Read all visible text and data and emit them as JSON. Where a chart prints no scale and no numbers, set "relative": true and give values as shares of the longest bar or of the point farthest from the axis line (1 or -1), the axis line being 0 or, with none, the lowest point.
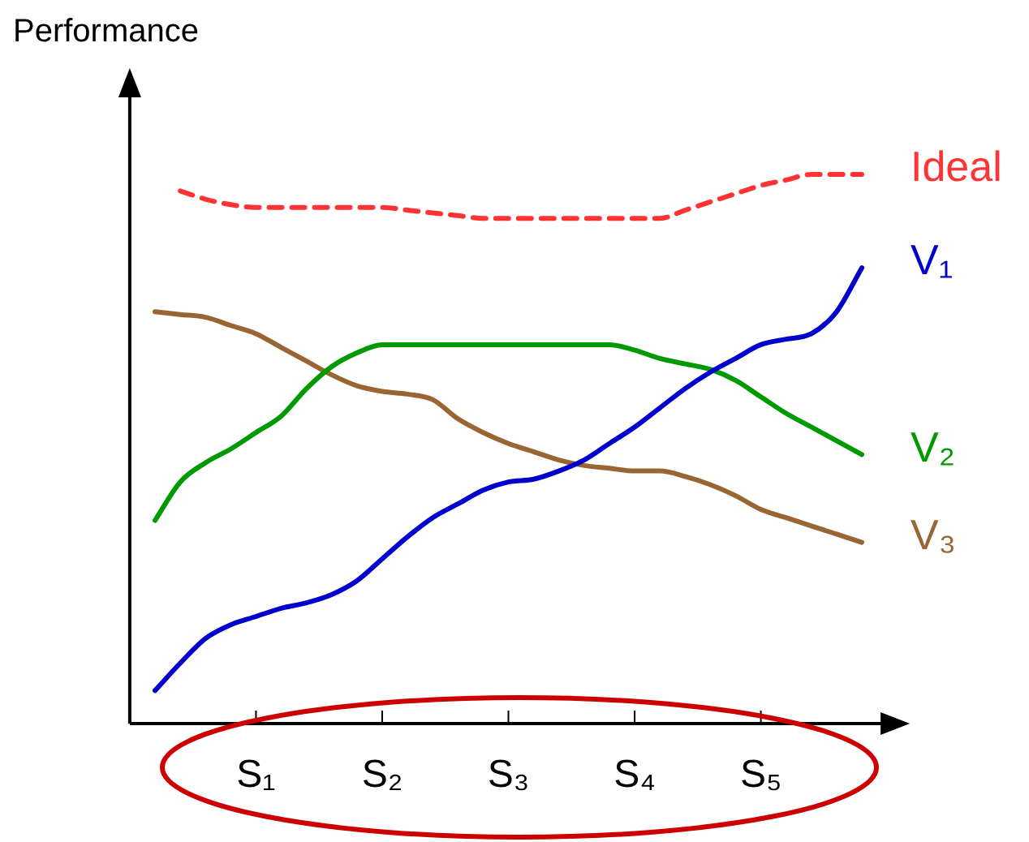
{
  "chart_data": {
    "type": "line",
    "relative": true,
    "ylabel": "Performance",
    "legend": false,
    "grid": false,
    "marker": "none",
    "categories": [
      null,
      null,
      null,
      null,
      "S₁",
      null,
      null,
      null,
      null,
      "S₂",
      null,
      null,
      null,
      null,
      "S₃",
      null,
      null,
      null,
      null,
      "S₄",
      null,
      null,
      null,
      null,
      "S₅",
      null,
      null,
      null,
      null
    ],
    "series": [
      {
        "name": "Ideal",
        "color": "#ff3333",
        "line_style": "dashed",
        "values": [
          null,
          0.97,
          0.955,
          0.945,
          0.94,
          0.94,
          0.94,
          0.94,
          0.94,
          0.94,
          0.935,
          0.93,
          0.925,
          0.92,
          0.92,
          0.92,
          0.92,
          0.92,
          0.92,
          0.92,
          0.92,
          0.935,
          0.95,
          0.965,
          0.98,
          0.99,
          1.0,
          1.0,
          1.0
        ]
      },
      {
        "name": "V₁",
        "color": "#0000cc",
        "line_style": "solid",
        "values": [
          0.06,
          0.11,
          0.155,
          0.18,
          0.195,
          0.21,
          0.22,
          0.235,
          0.26,
          0.3,
          0.34,
          0.375,
          0.4,
          0.425,
          0.44,
          0.445,
          0.46,
          0.48,
          0.51,
          0.54,
          0.575,
          0.61,
          0.64,
          0.665,
          0.69,
          0.7,
          0.71,
          0.75,
          0.83
        ]
      },
      {
        "name": "V₂",
        "color": "#009900",
        "line_style": "solid",
        "values": [
          0.37,
          0.44,
          0.475,
          0.5,
          0.53,
          0.56,
          0.61,
          0.65,
          0.675,
          0.69,
          0.69,
          0.69,
          0.69,
          0.69,
          0.69,
          0.69,
          0.69,
          0.69,
          0.69,
          0.68,
          0.665,
          0.655,
          0.645,
          0.625,
          0.595,
          0.565,
          0.54,
          0.515,
          0.49
        ]
      },
      {
        "name": "V₃",
        "color": "#996633",
        "line_style": "solid",
        "values": [
          0.75,
          0.745,
          0.74,
          0.725,
          0.71,
          0.685,
          0.66,
          0.635,
          0.615,
          0.605,
          0.6,
          0.59,
          0.555,
          0.53,
          0.51,
          0.495,
          0.48,
          0.47,
          0.465,
          0.46,
          0.46,
          0.45,
          0.435,
          0.415,
          0.39,
          0.375,
          0.36,
          0.345,
          0.33
        ]
      }
    ]
  }
}
